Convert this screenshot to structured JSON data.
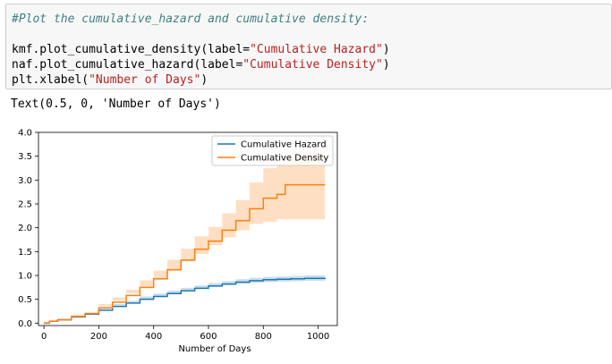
{
  "code": {
    "comment": "#Plot the cumulative_hazard and cumulative density:",
    "line1_prefix": "kmf.plot_cumulative_density(label=",
    "line1_string": "\"Cumulative Hazard\"",
    "line1_suffix": ")",
    "line2_prefix": "naf.plot_cumulative_hazard(label=",
    "line2_string": "\"Cumulative Density\"",
    "line2_suffix": ")",
    "line3_prefix": "plt.xlabel(",
    "line3_string": "\"Number of Days\"",
    "line3_suffix": ")"
  },
  "output": {
    "text": "Text(0.5, 0, 'Number of Days')"
  },
  "colors": {
    "hazard": "#1f77b4",
    "density": "#ff7f0e"
  },
  "chart_data": {
    "type": "line",
    "xlabel": "Number of Days",
    "ylabel": "",
    "xlim": [
      -20,
      1070
    ],
    "ylim": [
      -0.05,
      4.0
    ],
    "xticks": [
      0,
      200,
      400,
      600,
      800,
      1000
    ],
    "yticks": [
      0.0,
      0.5,
      1.0,
      1.5,
      2.0,
      2.5,
      3.0,
      3.5,
      4.0
    ],
    "xtick_labels": [
      "0",
      "200",
      "400",
      "600",
      "800",
      "1000"
    ],
    "ytick_labels": [
      "0.0",
      "0.5",
      "1.0",
      "1.5",
      "2.0",
      "2.5",
      "3.0",
      "3.5",
      "4.0"
    ],
    "legend": "top-right",
    "series": [
      {
        "name": "Cumulative Hazard",
        "color": "#1f77b4",
        "x": [
          0,
          20,
          50,
          100,
          150,
          200,
          250,
          300,
          350,
          400,
          450,
          500,
          550,
          600,
          650,
          700,
          750,
          800,
          850,
          900,
          950,
          1025
        ],
        "y": [
          0.0,
          0.04,
          0.07,
          0.13,
          0.19,
          0.27,
          0.35,
          0.42,
          0.5,
          0.56,
          0.62,
          0.68,
          0.73,
          0.78,
          0.82,
          0.86,
          0.89,
          0.91,
          0.92,
          0.93,
          0.94,
          0.95
        ],
        "lower": [
          0.0,
          0.02,
          0.05,
          0.1,
          0.16,
          0.23,
          0.3,
          0.37,
          0.44,
          0.5,
          0.56,
          0.62,
          0.67,
          0.72,
          0.76,
          0.8,
          0.83,
          0.85,
          0.86,
          0.87,
          0.88,
          0.89
        ],
        "upper": [
          0.0,
          0.06,
          0.09,
          0.16,
          0.22,
          0.31,
          0.4,
          0.47,
          0.56,
          0.62,
          0.68,
          0.74,
          0.79,
          0.84,
          0.88,
          0.92,
          0.95,
          0.97,
          0.98,
          0.99,
          1.0,
          1.01
        ]
      },
      {
        "name": "Cumulative Density",
        "color": "#ff7f0e",
        "x": [
          0,
          20,
          50,
          100,
          150,
          200,
          250,
          300,
          350,
          400,
          450,
          500,
          550,
          600,
          650,
          700,
          750,
          800,
          850,
          880,
          950,
          1025
        ],
        "y": [
          0.0,
          0.04,
          0.07,
          0.14,
          0.2,
          0.32,
          0.44,
          0.58,
          0.75,
          0.93,
          1.12,
          1.32,
          1.55,
          1.72,
          1.95,
          2.15,
          2.4,
          2.62,
          2.7,
          2.9,
          2.9,
          2.9
        ],
        "lower": [
          0.0,
          0.02,
          0.05,
          0.1,
          0.15,
          0.25,
          0.35,
          0.47,
          0.62,
          0.77,
          0.93,
          1.1,
          1.3,
          1.45,
          1.63,
          1.8,
          1.95,
          2.08,
          2.12,
          2.18,
          2.18,
          2.18
        ],
        "upper": [
          0.0,
          0.06,
          0.1,
          0.18,
          0.25,
          0.4,
          0.54,
          0.7,
          0.9,
          1.1,
          1.33,
          1.56,
          1.82,
          2.02,
          2.3,
          2.58,
          2.95,
          3.25,
          3.35,
          3.6,
          3.6,
          3.6
        ]
      }
    ]
  }
}
